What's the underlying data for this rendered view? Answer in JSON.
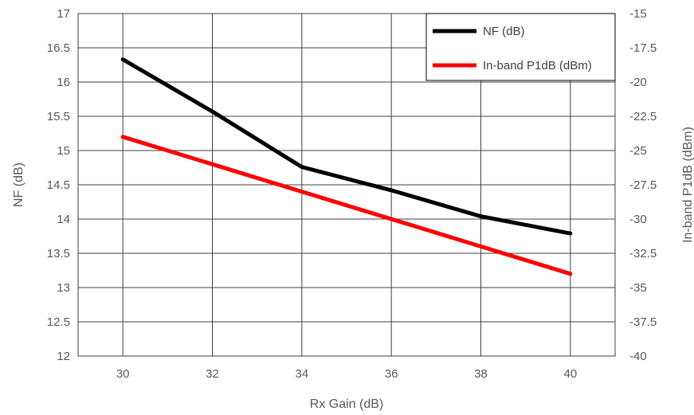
{
  "chart_data": {
    "type": "line",
    "x": [
      30,
      32,
      34,
      36,
      38,
      40
    ],
    "xlabel": "Rx Gain (dB)",
    "xlim": [
      29,
      41
    ],
    "x_ticks": [
      "30",
      "32",
      "34",
      "36",
      "38",
      "40"
    ],
    "ylabel": "NF (dB)",
    "ylim": [
      12,
      17
    ],
    "y_ticks": [
      "12",
      "12.5",
      "13",
      "13.5",
      "14",
      "14.5",
      "15",
      "15.5",
      "16",
      "16.5",
      "17"
    ],
    "y2label": "In-band P1dB (dBm)",
    "y2lim": [
      -40,
      -15
    ],
    "y2_ticks": [
      "-40",
      "-37.5",
      "-35",
      "-32.5",
      "-30",
      "-27.5",
      "-25",
      "-22.5",
      "-20",
      "-17.5",
      "-15"
    ],
    "grid": true,
    "legend_position": "top-right",
    "series": [
      {
        "name": "NF (dB)",
        "axis": "left",
        "color": "#000000",
        "values": [
          16.33,
          15.57,
          14.76,
          14.42,
          14.04,
          13.79
        ]
      },
      {
        "name": "In-band P1dB (dBm)",
        "axis": "right",
        "color": "#ff0000",
        "values": [
          -24,
          -26,
          -28,
          -30,
          -32,
          -34
        ]
      }
    ]
  }
}
